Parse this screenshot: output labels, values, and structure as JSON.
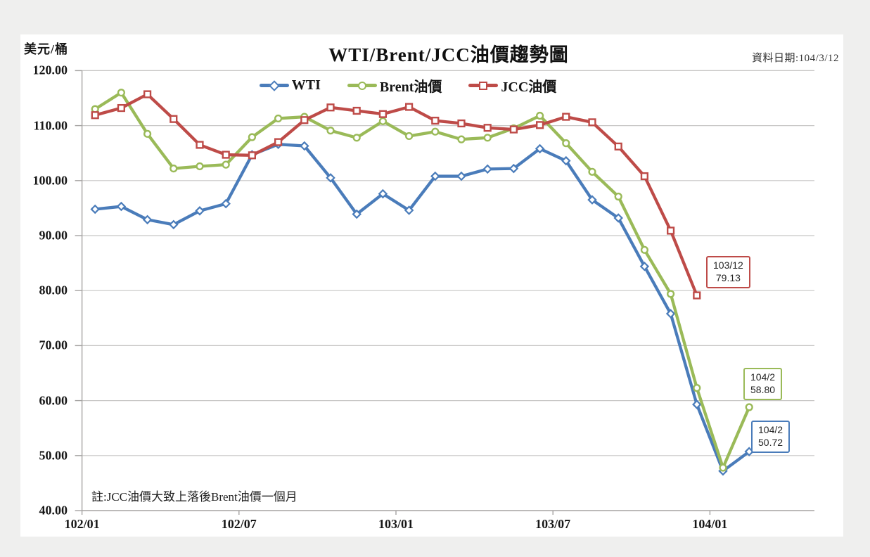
{
  "page": {
    "unit_label": "美元/桶",
    "title": "WTI/Brent/JCC油價趨勢圖",
    "data_date": "資料日期:104/3/12",
    "note": "註:JCC油價大致上落後Brent油價一個月"
  },
  "y_axis_labels": [
    "120.00",
    "110.00",
    "100.00",
    "90.00",
    "80.00",
    "70.00",
    "60.00",
    "50.00",
    "40.00"
  ],
  "chart_data": {
    "type": "line",
    "title": "WTI/Brent/JCC油價趨勢圖",
    "ylabel": "美元/桶",
    "ylim": [
      40,
      120
    ],
    "ytick_step": 10,
    "grid": "horizontal",
    "legend_position": "top-center",
    "x_tick_labels": [
      "102/01",
      "102/07",
      "103/01",
      "103/07",
      "104/01"
    ],
    "categories": [
      "102/01",
      "102/02",
      "102/03",
      "102/04",
      "102/05",
      "102/06",
      "102/07",
      "102/08",
      "102/09",
      "102/10",
      "102/11",
      "102/12",
      "103/01",
      "103/02",
      "103/03",
      "103/04",
      "103/05",
      "103/06",
      "103/07",
      "103/08",
      "103/09",
      "103/10",
      "103/11",
      "103/12",
      "104/01",
      "104/02"
    ],
    "series": [
      {
        "name": "WTI",
        "color": "#4a7cba",
        "marker": "diamond",
        "values": [
          94.8,
          95.3,
          92.9,
          92.0,
          94.5,
          95.8,
          104.7,
          106.6,
          106.3,
          100.5,
          93.9,
          97.6,
          94.6,
          100.8,
          100.8,
          102.1,
          102.2,
          105.8,
          103.6,
          96.5,
          93.2,
          84.4,
          75.8,
          59.3,
          47.2,
          50.72
        ]
      },
      {
        "name": "Brent油價",
        "color": "#9aba58",
        "marker": "circle",
        "values": [
          113.0,
          116.0,
          108.5,
          102.2,
          102.6,
          102.9,
          107.9,
          111.3,
          111.6,
          109.1,
          107.8,
          110.8,
          108.1,
          108.9,
          107.5,
          107.8,
          109.5,
          111.8,
          106.8,
          101.6,
          97.1,
          87.4,
          79.4,
          62.3,
          47.8,
          58.8
        ]
      },
      {
        "name": "JCC油價",
        "color": "#be4b48",
        "marker": "square",
        "values": [
          111.9,
          113.2,
          115.7,
          111.2,
          106.5,
          104.7,
          104.6,
          107.0,
          111.0,
          113.3,
          112.7,
          112.1,
          113.4,
          110.9,
          110.4,
          109.6,
          109.3,
          110.1,
          111.6,
          110.6,
          106.2,
          100.8,
          90.9,
          79.13,
          null,
          null
        ]
      }
    ],
    "annotations": [
      {
        "series": "JCC油價",
        "label": "103/12",
        "value": "79.13"
      },
      {
        "series": "Brent油價",
        "label": "104/2",
        "value": "58.80"
      },
      {
        "series": "WTI",
        "label": "104/2",
        "value": "50.72"
      }
    ]
  }
}
